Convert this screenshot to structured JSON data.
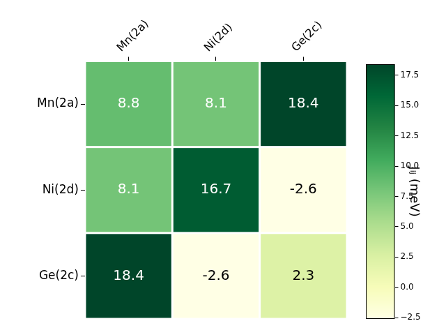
{
  "chart_data": {
    "type": "heatmap",
    "x_categories": [
      "Mn(2a)",
      "Ni(2d)",
      "Ge(2c)"
    ],
    "y_categories": [
      "Mn(2a)",
      "Ni(2d)",
      "Ge(2c)"
    ],
    "cells": [
      [
        8.8,
        8.1,
        18.4
      ],
      [
        8.1,
        16.7,
        -2.6
      ],
      [
        18.4,
        -2.6,
        2.3
      ]
    ],
    "data_labels": true,
    "colorbar": {
      "label": "Jᵢⱼ (meV)",
      "range": [
        -2.6,
        18.4
      ],
      "ticks": [
        {
          "value": -2.5,
          "label": "−2.5"
        },
        {
          "value": 0,
          "label": "0.0"
        },
        2.5,
        {
          "value": 5,
          "label": "5.0"
        },
        7.5,
        {
          "value": 10,
          "label": "10.0"
        },
        12.5,
        {
          "value": 15,
          "label": "15.0"
        },
        17.5
      ]
    }
  }
}
